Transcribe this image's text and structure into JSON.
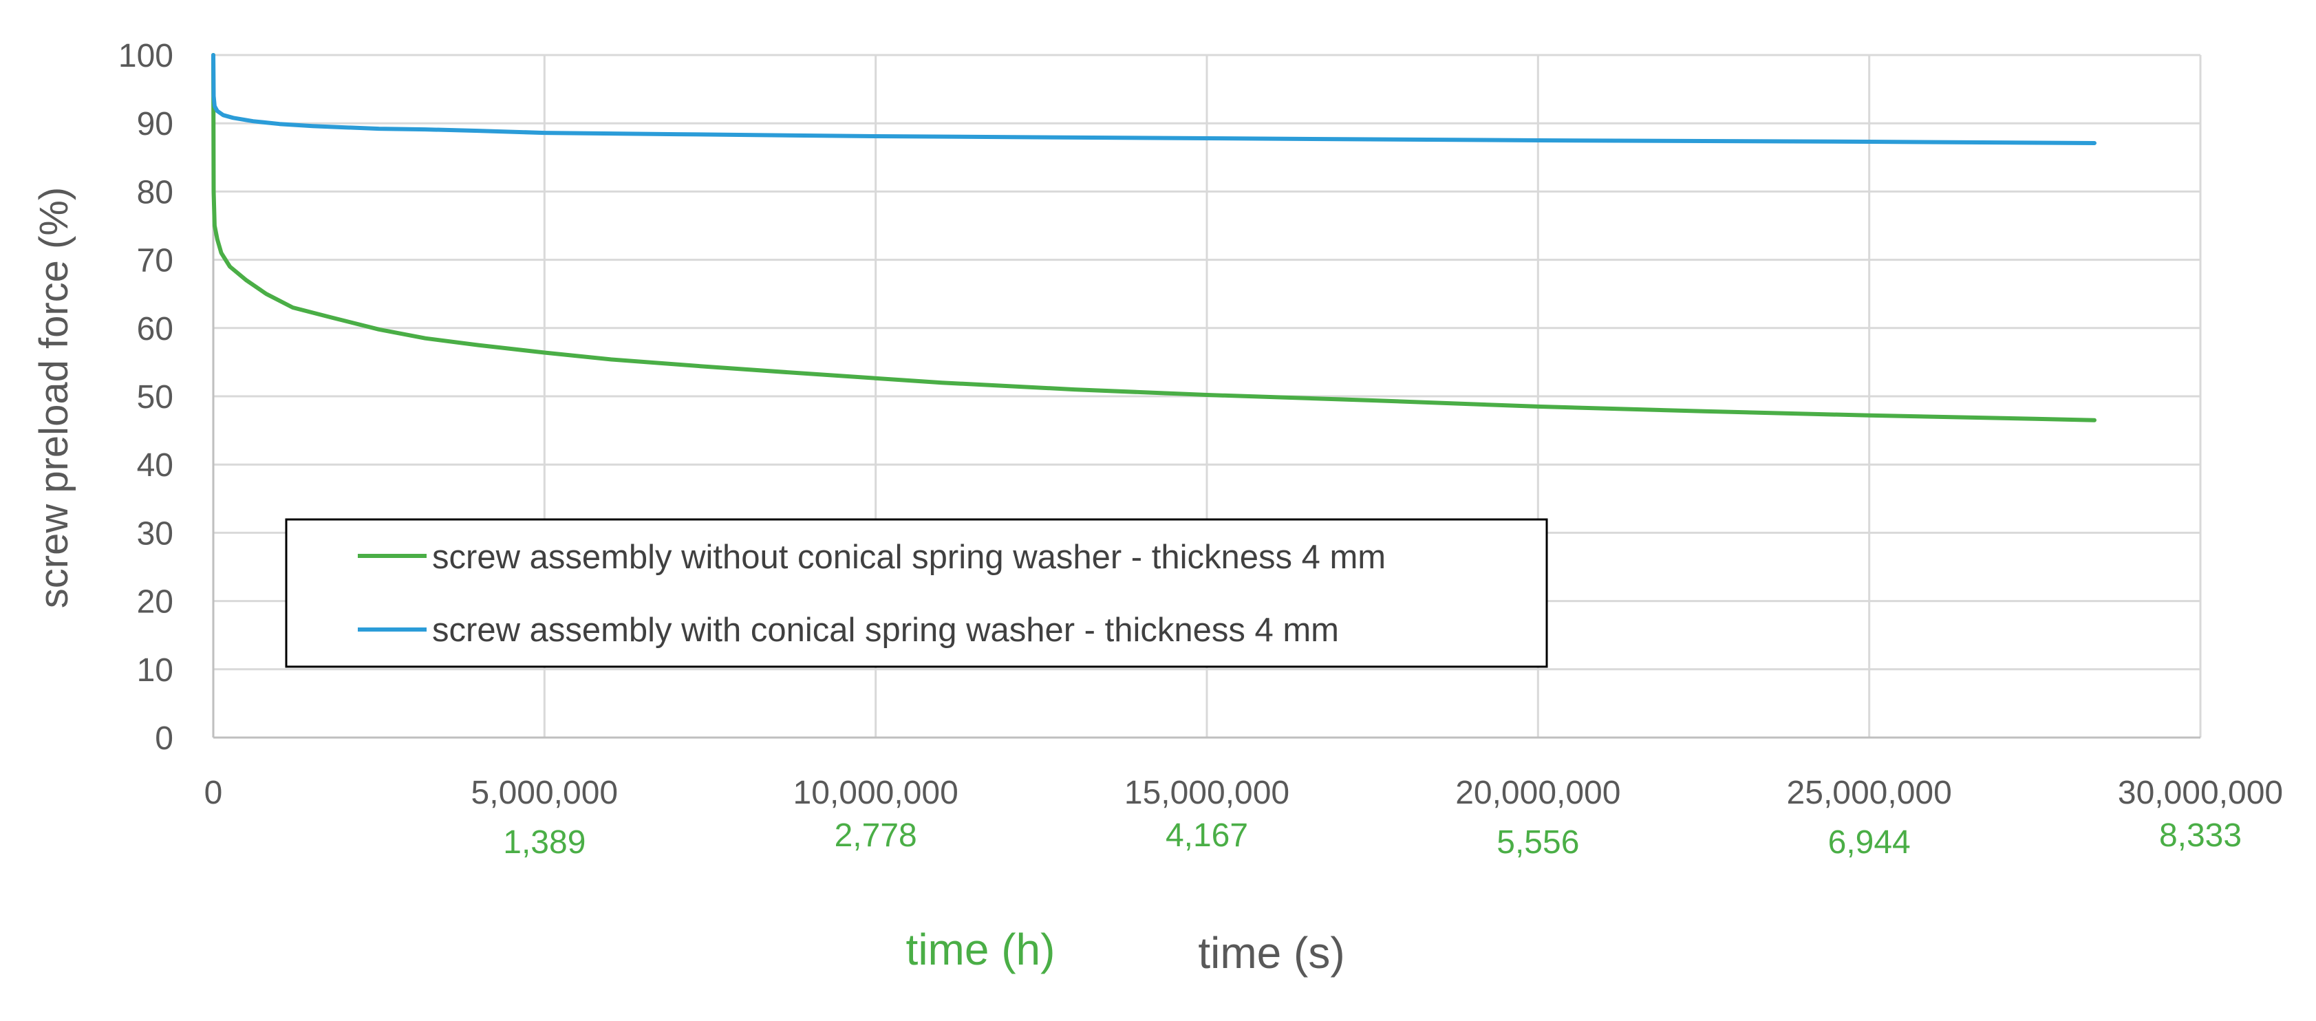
{
  "chart_data": {
    "type": "line",
    "ylabel": "screw preload force (%)",
    "xlabel_primary": "time (s)",
    "xlabel_secondary": "time (h)",
    "xlim": [
      0,
      30000000
    ],
    "ylim": [
      0,
      100
    ],
    "x_ticks": [
      0,
      5000000,
      10000000,
      15000000,
      20000000,
      25000000,
      30000000
    ],
    "x_tick_labels": [
      "0",
      "5,000,000",
      "10,000,000",
      "15,000,000",
      "20,000,000",
      "25,000,000",
      "30,000,000"
    ],
    "y_ticks": [
      0,
      10,
      20,
      30,
      40,
      50,
      60,
      70,
      80,
      90,
      100
    ],
    "y_tick_labels": [
      "0",
      "10",
      "20",
      "30",
      "40",
      "50",
      "60",
      "70",
      "80",
      "90",
      "100"
    ],
    "secondary_x_tick_labels": [
      {
        "x": 5000000,
        "label": "1,389"
      },
      {
        "x": 10000000,
        "label": "2,778"
      },
      {
        "x": 15000000,
        "label": "4,167"
      },
      {
        "x": 20000000,
        "label": "5,556"
      },
      {
        "x": 25000000,
        "label": "6,944"
      },
      {
        "x": 30000000,
        "label": "8,333"
      }
    ],
    "grid": true,
    "legend_position": "lower-left",
    "series": [
      {
        "name": "screw assembly without conical spring washer - thickness 4 mm",
        "color": "#4aae46",
        "x": [
          0,
          5000,
          20000,
          60000,
          120000,
          250000,
          500000,
          800000,
          1200000,
          1800000,
          2500000,
          3200000,
          4000000,
          5000000,
          6000000,
          7500000,
          9000000,
          11000000,
          13000000,
          15000000,
          17500000,
          20000000,
          22500000,
          25000000,
          27500000,
          28400000
        ],
        "y": [
          100,
          80,
          75,
          73,
          71,
          69,
          67,
          65,
          63,
          61.5,
          59.8,
          58.5,
          57.5,
          56.4,
          55.4,
          54.3,
          53.3,
          52,
          51,
          50.2,
          49.4,
          48.5,
          47.8,
          47.2,
          46.7,
          46.5
        ]
      },
      {
        "name": "screw assembly with conical spring washer - thickness 4 mm",
        "color": "#2b9cd8",
        "x": [
          0,
          5000,
          20000,
          60000,
          150000,
          300000,
          600000,
          1000000,
          1500000,
          2000000,
          2500000,
          3200000,
          4000000,
          5000000,
          7000000,
          10000000,
          15000000,
          20000000,
          22500000,
          25000000,
          28400000
        ],
        "y": [
          100,
          94,
          92.5,
          91.8,
          91.2,
          90.8,
          90.3,
          89.9,
          89.6,
          89.4,
          89.2,
          89.1,
          88.9,
          88.6,
          88.4,
          88.1,
          87.8,
          87.5,
          87.4,
          87.3,
          87.1
        ]
      }
    ]
  }
}
